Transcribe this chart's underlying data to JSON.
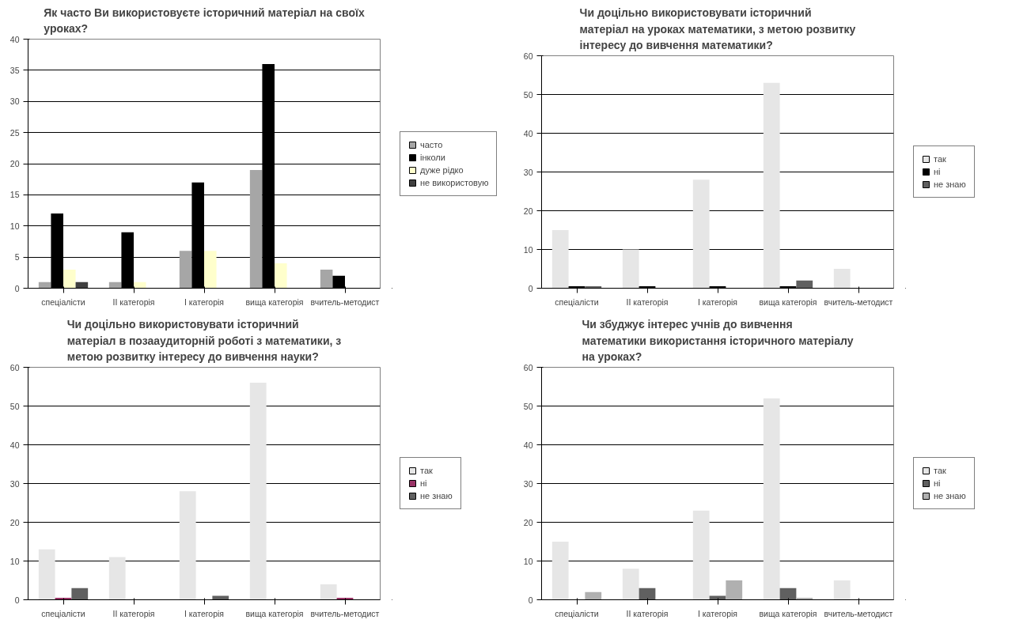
{
  "chart_data": [
    {
      "type": "bar",
      "title": "Як часто Ви використовуєте історичний матеріал на своїх\nуроках?",
      "categories": [
        "спеціалісти",
        "ІІ категорія",
        "І категорія",
        "вища категорія",
        "вчитель-методист"
      ],
      "series": [
        {
          "name": "часто",
          "color": "#a6a6a6",
          "values": [
            1,
            1,
            6,
            19,
            3
          ]
        },
        {
          "name": "інколи",
          "color": "#000000",
          "values": [
            12,
            9,
            17,
            36,
            2
          ]
        },
        {
          "name": "дуже рідко",
          "color": "#ffffcc",
          "values": [
            3,
            1,
            6,
            4,
            0
          ]
        },
        {
          "name": "не використовую",
          "color": "#404040",
          "values": [
            1,
            0,
            0,
            0,
            0
          ]
        }
      ],
      "ylim": [
        0,
        40
      ],
      "yticks": [
        0,
        5,
        10,
        15,
        20,
        25,
        30,
        35,
        40
      ],
      "grid": "y",
      "legend": "right"
    },
    {
      "type": "bar",
      "title": "Чи доцільно використовувати історичний\nматеріал на уроках математики, з метою розвитку\nінтересу до вивчення математики?",
      "categories": [
        "спеціалісти",
        "ІІ категорія",
        "І категорія",
        "вища категорія",
        "вчитель-методист"
      ],
      "series": [
        {
          "name": "так",
          "color": "#e6e6e6",
          "values": [
            15,
            10,
            28,
            53,
            5
          ]
        },
        {
          "name": "ні",
          "color": "#000000",
          "values": [
            0.5,
            0.5,
            0.5,
            0.5,
            0
          ]
        },
        {
          "name": "не знаю",
          "color": "#606060",
          "values": [
            0.5,
            0,
            0,
            2,
            0
          ]
        }
      ],
      "ylim": [
        0,
        60
      ],
      "yticks": [
        0,
        10,
        20,
        30,
        40,
        50,
        60
      ],
      "grid": "y",
      "legend": "right"
    },
    {
      "type": "bar",
      "title": "Чи доцільно використовувати історичний\nматеріал в позааудиторній роботі з математики, з\nметою розвитку інтересу до вивчення науки?",
      "categories": [
        "спеціалісти",
        "ІІ категорія",
        "І категорія",
        "вища категорія",
        "вчитель-методист"
      ],
      "series": [
        {
          "name": "так",
          "color": "#e6e6e6",
          "values": [
            13,
            11,
            28,
            56,
            4
          ]
        },
        {
          "name": "ні",
          "color": "#993366",
          "values": [
            0.5,
            0,
            0,
            0,
            0.5
          ]
        },
        {
          "name": "не знаю",
          "color": "#606060",
          "values": [
            3,
            0,
            1,
            0,
            0
          ]
        }
      ],
      "ylim": [
        0,
        60
      ],
      "yticks": [
        0,
        10,
        20,
        30,
        40,
        50,
        60
      ],
      "grid": "y",
      "legend": "right"
    },
    {
      "type": "bar",
      "title": "Чи збуджує інтерес учнів до вивчення\nматематики використання історичного матеріалу\nна уроках?",
      "categories": [
        "спеціалісти",
        "ІІ категорія",
        "І категорія",
        "вища категорія",
        "вчитель-методист"
      ],
      "series": [
        {
          "name": "так",
          "color": "#e6e6e6",
          "values": [
            15,
            8,
            23,
            52,
            5
          ]
        },
        {
          "name": "ні",
          "color": "#606060",
          "values": [
            0,
            3,
            1,
            3,
            0
          ]
        },
        {
          "name": "не знаю",
          "color": "#b0b0b0",
          "values": [
            2,
            0,
            5,
            0.5,
            0
          ]
        }
      ],
      "ylim": [
        0,
        60
      ],
      "yticks": [
        0,
        10,
        20,
        30,
        40,
        50,
        60
      ],
      "grid": "y",
      "legend": "right"
    }
  ]
}
